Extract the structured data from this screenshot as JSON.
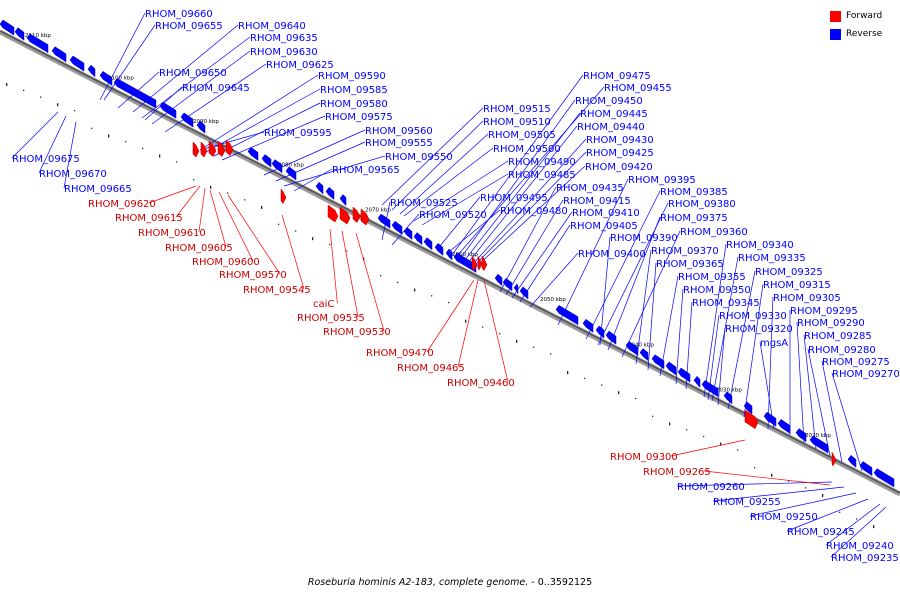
{
  "legend": {
    "forward_label": "Forward",
    "reverse_label": "Reverse",
    "forward_color": "#ff0000",
    "reverse_color": "#0000ff"
  },
  "caption": {
    "organism": "Roseburia hominis A2-183, complete genome.",
    "range": "- 0..3592125"
  },
  "ticks": [
    "2110 kbp",
    "2100 kbp",
    "2090 kbp",
    "2080 kbp",
    "2070 kbp",
    "2060 kbp",
    "2050 kbp",
    "2040 kbp",
    "2030 kbp",
    "2020 kbp"
  ],
  "reverse_labels": [
    "RHOM_09660",
    "RHOM_09655",
    "RHOM_09640",
    "RHOM_09635",
    "RHOM_09630",
    "RHOM_09625",
    "RHOM_09650",
    "RHOM_09645",
    "RHOM_09590",
    "RHOM_09585",
    "RHOM_09580",
    "RHOM_09575",
    "RHOM_09595",
    "RHOM_09560",
    "RHOM_09555",
    "RHOM_09550",
    "RHOM_09565",
    "RHOM_09675",
    "RHOM_09670",
    "RHOM_09665",
    "RHOM_09475",
    "RHOM_09455",
    "RHOM_09450",
    "RHOM_09445",
    "RHOM_09440",
    "RHOM_09430",
    "RHOM_09425",
    "RHOM_09420",
    "RHOM_09515",
    "RHOM_09510",
    "RHOM_09505",
    "RHOM_09500",
    "RHOM_09490",
    "RHOM_09485",
    "RHOM_09435",
    "RHOM_09415",
    "RHOM_09410",
    "RHOM_09405",
    "RHOM_09400",
    "RHOM_09495",
    "RHOM_09480",
    "RHOM_09525",
    "RHOM_09520",
    "RHOM_09395",
    "RHOM_09385",
    "RHOM_09380",
    "RHOM_09375",
    "RHOM_09360",
    "RHOM_09390",
    "RHOM_09370",
    "RHOM_09365",
    "RHOM_09355",
    "RHOM_09350",
    "RHOM_09345",
    "RHOM_09340",
    "RHOM_09335",
    "RHOM_09325",
    "RHOM_09315",
    "RHOM_09305",
    "RHOM_09295",
    "RHOM_09330",
    "RHOM_09320",
    "RHOM_09290",
    "RHOM_09285",
    "mgsA",
    "RHOM_09280",
    "RHOM_09275",
    "RHOM_09270",
    "RHOM_09260",
    "RHOM_09255",
    "RHOM_09250",
    "RHOM_09245",
    "RHOM_09240",
    "RHOM_09235"
  ],
  "forward_labels": [
    "RHOM_09620",
    "RHOM_09615",
    "RHOM_09610",
    "RHOM_09605",
    "RHOM_09600",
    "RHOM_09570",
    "RHOM_09545",
    "caiC",
    "RHOM_09535",
    "RHOM_09530",
    "RHOM_09470",
    "RHOM_09465",
    "RHOM_09460",
    "RHOM_09300",
    "RHOM_09265"
  ]
}
